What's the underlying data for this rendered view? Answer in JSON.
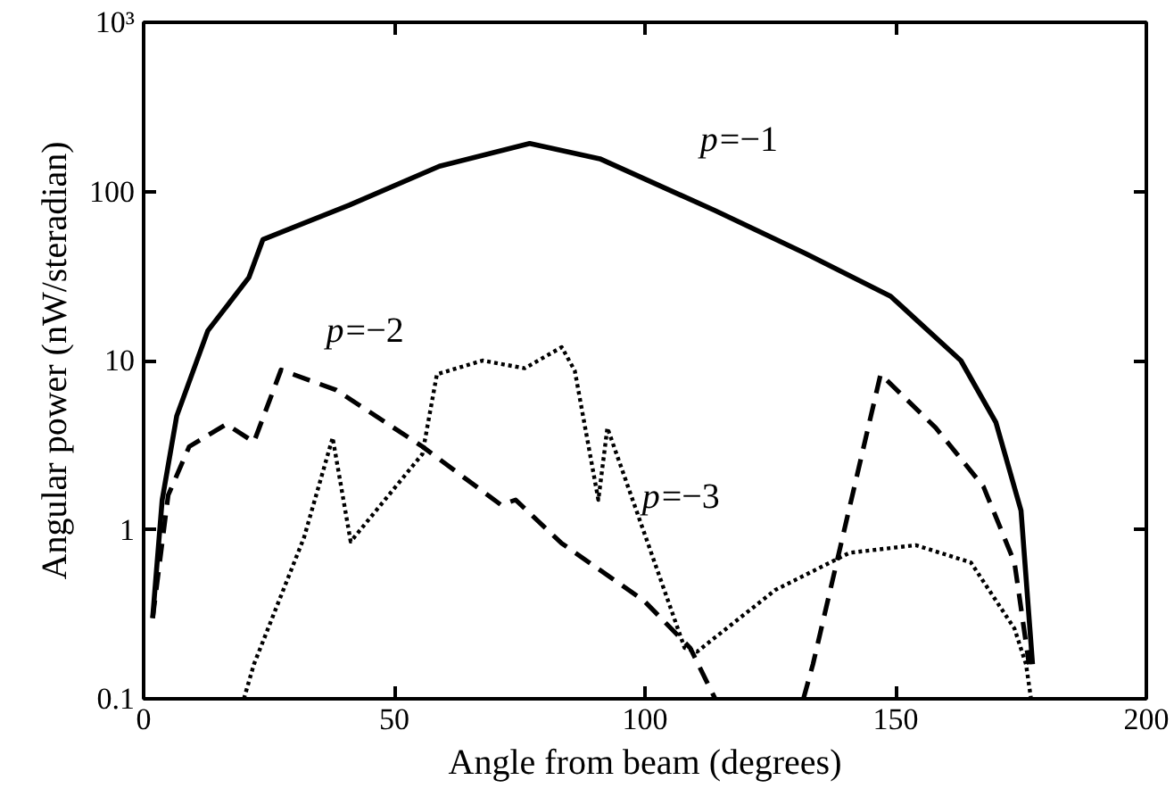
{
  "chart_data": {
    "type": "line",
    "xlabel": "Angle from beam (degrees)",
    "ylabel": "Angular power (nW/steradian)",
    "log": "y",
    "grid": false,
    "marker": "none",
    "xlim": [
      0,
      200
    ],
    "xticks": [
      0,
      50,
      100,
      150,
      200
    ],
    "ylim": [
      0.1,
      1000
    ],
    "yticks": [
      0.1,
      1,
      10,
      100,
      {
        "value": 1000,
        "label": "10³"
      }
    ],
    "series": [
      {
        "name": "p=−1",
        "color": "#000000",
        "line_style": "solid",
        "x": [
          1.8,
          3.7,
          6.6,
          12.8,
          21,
          23.8,
          41,
          59,
          77,
          91,
          114,
          132,
          149,
          163,
          170,
          175,
          177.3
        ],
        "values": [
          0.3,
          1.5,
          4.7,
          15,
          31,
          52,
          83,
          141,
          192,
          156,
          77,
          43,
          24,
          10,
          4.3,
          1.3,
          0.16
        ]
      },
      {
        "name": "p=−2",
        "color": "#000000",
        "line_style": "dashed",
        "x": [
          1.8,
          4.9,
          9.1,
          16.5,
          22,
          27.4,
          38.4,
          55.6,
          71.3,
          74.2,
          83.4,
          99.8,
          109,
          114,
          null,
          131.6,
          133.5,
          147,
          158,
          167.5,
          173.7,
          176.6
        ],
        "values": [
          0.3,
          1.6,
          3.1,
          4.2,
          3.3,
          8.8,
          6.7,
          3.1,
          1.4,
          1.5,
          0.83,
          0.38,
          0.2,
          0.1,
          null,
          0.1,
          0.16,
          8.3,
          4,
          1.8,
          0.64,
          0.16
        ]
      },
      {
        "name": "p=−3",
        "color": "#000000",
        "line_style": "dotted",
        "x": [
          20,
          22,
          32,
          37.7,
          41.3,
          55.6,
          58.5,
          67.6,
          76,
          83.4,
          86,
          90.7,
          92.5,
          107.9,
          110.4,
          126,
          140.8,
          154,
          165,
          173.7,
          176,
          177
        ],
        "values": [
          0.1,
          0.16,
          0.9,
          3.5,
          0.85,
          2.8,
          8.3,
          10,
          9,
          12,
          8.7,
          1.5,
          4,
          0.2,
          0.19,
          0.44,
          0.73,
          0.81,
          0.64,
          0.26,
          0.16,
          0.1
        ]
      }
    ]
  }
}
